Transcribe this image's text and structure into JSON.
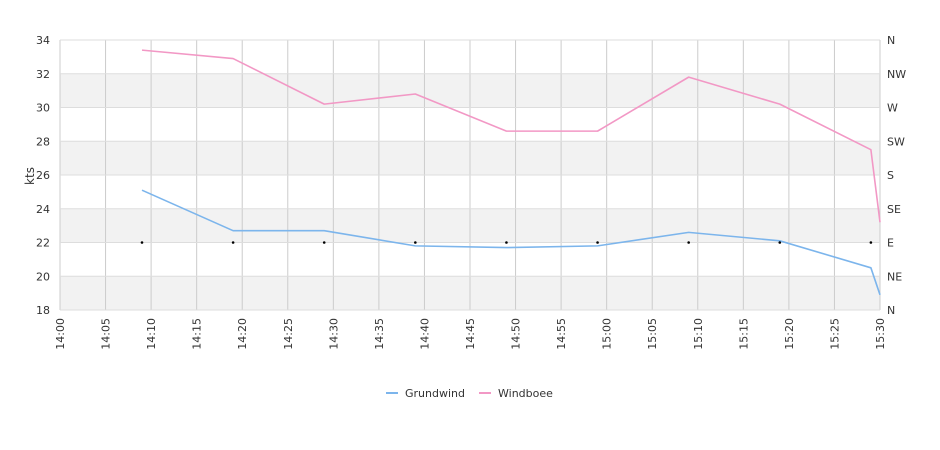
{
  "chart_data": {
    "type": "line",
    "ylabel": "kts",
    "ylim": [
      18,
      34
    ],
    "y_ticks": [
      "18",
      "20",
      "22",
      "24",
      "26",
      "28",
      "30",
      "32",
      "34"
    ],
    "x_ticks": [
      "14:00",
      "14:05",
      "14:10",
      "14:15",
      "14:20",
      "14:25",
      "14:30",
      "14:35",
      "14:40",
      "14:45",
      "14:50",
      "14:55",
      "15:00",
      "15:05",
      "15:10",
      "15:15",
      "15:20",
      "15:25",
      "15:30"
    ],
    "right_axis_ticks": [
      "N",
      "NE",
      "E",
      "SE",
      "S",
      "SW",
      "W",
      "NW",
      "N"
    ],
    "grid": true,
    "legend": "bottom-center",
    "series": [
      {
        "name": "Grundwind",
        "color": "#7cb5ec",
        "x": [
          "14:09",
          "14:19",
          "14:29",
          "14:39",
          "14:49",
          "14:59",
          "15:09",
          "15:19",
          "15:29",
          "15:30"
        ],
        "values": [
          25.1,
          22.7,
          22.7,
          21.8,
          21.7,
          21.8,
          22.6,
          22.1,
          20.5,
          18.9
        ]
      },
      {
        "name": "Windboee",
        "color": "#f298c5",
        "x": [
          "14:09",
          "14:19",
          "14:29",
          "14:39",
          "14:49",
          "14:59",
          "15:09",
          "15:19",
          "15:29",
          "15:30"
        ],
        "values": [
          33.4,
          32.9,
          30.2,
          30.8,
          28.6,
          28.6,
          31.8,
          30.2,
          27.5,
          23.2
        ]
      },
      {
        "name": "",
        "type": "scatter",
        "color": "#000000",
        "axis": "right",
        "x": [
          "14:09",
          "14:19",
          "14:29",
          "14:39",
          "14:49",
          "14:59",
          "15:09",
          "15:19",
          "15:29"
        ],
        "values": [
          2,
          2,
          2,
          2,
          2,
          2,
          2,
          2,
          2
        ]
      }
    ]
  }
}
